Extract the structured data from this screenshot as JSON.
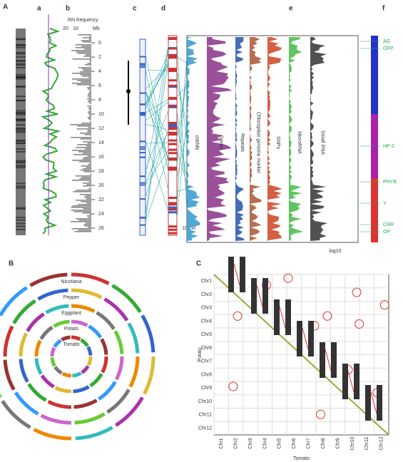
{
  "panel_labels": [
    "A",
    "a",
    "b",
    "c",
    "d",
    "e",
    "f",
    "B",
    "C"
  ],
  "panel_a": {
    "axis_title": "RN frequency",
    "top_ticks": [
      20,
      10
    ],
    "unit": "Mb",
    "mb_ticks": [
      0,
      2,
      4,
      6,
      8,
      10,
      12,
      14,
      16,
      18,
      20,
      22,
      24,
      26
    ]
  },
  "panel_d": {
    "scale": "10 cM"
  },
  "panel_e": {
    "tracks": [
      "cM/Mb",
      "Genes",
      "Repeats",
      "Chloroplast genome marker",
      "SNPs",
      "MicroRNA",
      "Small RNA"
    ],
    "x_label": "log10"
  },
  "panel_f": {
    "genes": [
      "AG",
      "OFP",
      "HP-2",
      "PHYB",
      "Y",
      "CNR",
      "OP"
    ]
  },
  "panel_B": {
    "rings": [
      "Nicotiana",
      "Pepper",
      "Eggplant",
      "Potato",
      "Tomato"
    ]
  },
  "panel_C": {
    "y_label": "Potato",
    "x_label": "Tomato",
    "chromosomes": [
      "Chr1",
      "Chr2",
      "Chr3",
      "Chr4",
      "Chr5",
      "Chr6",
      "Chr7",
      "Chr8",
      "Chr9",
      "Chr10",
      "Chr11",
      "Chr12"
    ]
  }
}
